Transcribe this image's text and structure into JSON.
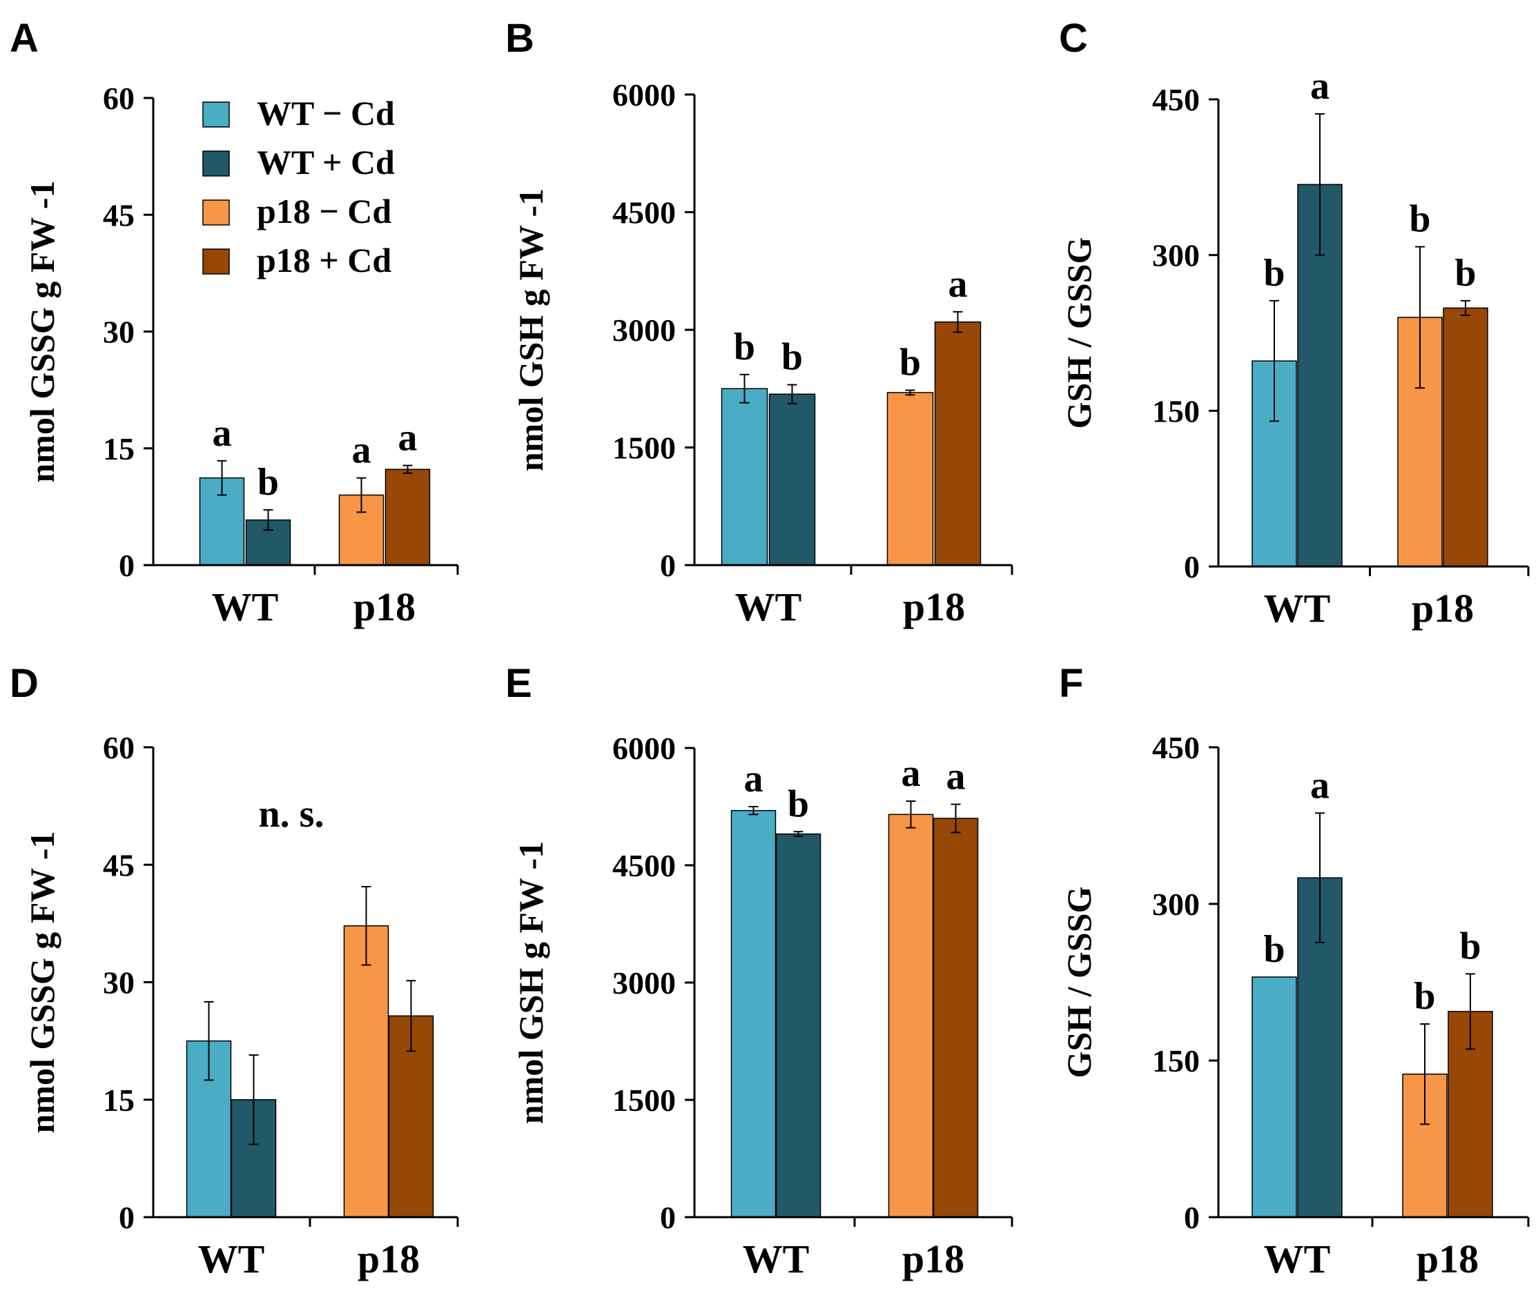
{
  "colors": {
    "wt_minus": "#4bacc6",
    "wt_plus": "#215968",
    "p18_minus": "#f79646",
    "p18_plus": "#974806",
    "axis": "#000000"
  },
  "legend": {
    "items": [
      {
        "label": "WT − Cd",
        "color_key": "wt_minus"
      },
      {
        "label": "WT + Cd",
        "color_key": "wt_plus"
      },
      {
        "label": "p18 − Cd",
        "color_key": "p18_minus"
      },
      {
        "label": "p18 + Cd",
        "color_key": "p18_plus"
      }
    ]
  },
  "chart_data": [
    {
      "panel": "A",
      "type": "bar",
      "title": "",
      "ylabel": "nmol GSSG g FW -1",
      "xlabel": "",
      "ylim": [
        0,
        60
      ],
      "yticks": [
        "0",
        "15",
        "30",
        "45",
        "60"
      ],
      "categories": [
        "WT",
        "p18"
      ],
      "series": [
        {
          "name": "WT − Cd",
          "color_key": "wt_minus",
          "group": 0,
          "value": 11.2,
          "error": 2.2,
          "letter": "a"
        },
        {
          "name": "WT + Cd",
          "color_key": "wt_plus",
          "group": 0,
          "value": 5.8,
          "error": 1.3,
          "letter": "b"
        },
        {
          "name": "p18 − Cd",
          "color_key": "p18_minus",
          "group": 1,
          "value": 9.0,
          "error": 2.2,
          "letter": "a"
        },
        {
          "name": "p18 + Cd",
          "color_key": "p18_plus",
          "group": 1,
          "value": 12.3,
          "error": 0.5,
          "letter": "a"
        }
      ],
      "annotation": ""
    },
    {
      "panel": "B",
      "type": "bar",
      "title": "",
      "ylabel": "nmol GSH g FW -1",
      "xlabel": "",
      "ylim": [
        0,
        6000
      ],
      "yticks": [
        "0",
        "1500",
        "3000",
        "4500",
        "6000"
      ],
      "categories": [
        "WT",
        "p18"
      ],
      "series": [
        {
          "name": "WT − Cd",
          "color_key": "wt_minus",
          "group": 0,
          "value": 2250,
          "error": 180,
          "letter": "b"
        },
        {
          "name": "WT + Cd",
          "color_key": "wt_plus",
          "group": 0,
          "value": 2180,
          "error": 120,
          "letter": "b"
        },
        {
          "name": "p18 − Cd",
          "color_key": "p18_minus",
          "group": 1,
          "value": 2200,
          "error": 30,
          "letter": "b"
        },
        {
          "name": "p18 + Cd",
          "color_key": "p18_plus",
          "group": 1,
          "value": 3100,
          "error": 130,
          "letter": "a"
        }
      ],
      "annotation": ""
    },
    {
      "panel": "C",
      "type": "bar",
      "title": "",
      "ylabel": "GSH / GSSG",
      "xlabel": "",
      "ylim": [
        0,
        450
      ],
      "yticks": [
        "0",
        "150",
        "300",
        "450"
      ],
      "categories": [
        "WT",
        "p18"
      ],
      "series": [
        {
          "name": "WT − Cd",
          "color_key": "wt_minus",
          "group": 0,
          "value": 198,
          "error": 58,
          "letter": "b"
        },
        {
          "name": "WT + Cd",
          "color_key": "wt_plus",
          "group": 0,
          "value": 368,
          "error": 68,
          "letter": "a"
        },
        {
          "name": "p18 − Cd",
          "color_key": "p18_minus",
          "group": 1,
          "value": 240,
          "error": 68,
          "letter": "b"
        },
        {
          "name": "p18 + Cd",
          "color_key": "p18_plus",
          "group": 1,
          "value": 249,
          "error": 7,
          "letter": "b"
        }
      ],
      "annotation": ""
    },
    {
      "panel": "D",
      "type": "bar",
      "title": "",
      "ylabel": "nmol GSSG g FW -1",
      "xlabel": "",
      "ylim": [
        0,
        60
      ],
      "yticks": [
        "0",
        "15",
        "30",
        "45",
        "60"
      ],
      "categories": [
        "WT",
        "p18"
      ],
      "series": [
        {
          "name": "WT − Cd",
          "color_key": "wt_minus",
          "group": 0,
          "value": 22.5,
          "error": 5.0,
          "letter": ""
        },
        {
          "name": "WT + Cd",
          "color_key": "wt_plus",
          "group": 0,
          "value": 15.0,
          "error": 5.7,
          "letter": ""
        },
        {
          "name": "p18 − Cd",
          "color_key": "p18_minus",
          "group": 1,
          "value": 37.2,
          "error": 5.0,
          "letter": ""
        },
        {
          "name": "p18 + Cd",
          "color_key": "p18_plus",
          "group": 1,
          "value": 25.7,
          "error": 4.5,
          "letter": ""
        }
      ],
      "annotation": "n. s."
    },
    {
      "panel": "E",
      "type": "bar",
      "title": "",
      "ylabel": "nmol GSH g FW -1",
      "xlabel": "",
      "ylim": [
        0,
        6000
      ],
      "yticks": [
        "0",
        "1500",
        "3000",
        "4500",
        "6000"
      ],
      "categories": [
        "WT",
        "p18"
      ],
      "series": [
        {
          "name": "WT − Cd",
          "color_key": "wt_minus",
          "group": 0,
          "value": 5200,
          "error": 50,
          "letter": "a"
        },
        {
          "name": "WT + Cd",
          "color_key": "wt_plus",
          "group": 0,
          "value": 4900,
          "error": 30,
          "letter": "b"
        },
        {
          "name": "p18 − Cd",
          "color_key": "p18_minus",
          "group": 1,
          "value": 5150,
          "error": 170,
          "letter": "a"
        },
        {
          "name": "p18 + Cd",
          "color_key": "p18_plus",
          "group": 1,
          "value": 5100,
          "error": 180,
          "letter": "a"
        }
      ],
      "annotation": ""
    },
    {
      "panel": "F",
      "type": "bar",
      "title": "",
      "ylabel": "GSH / GSSG",
      "xlabel": "",
      "ylim": [
        0,
        450
      ],
      "yticks": [
        "0",
        "150",
        "300",
        "450"
      ],
      "categories": [
        "WT",
        "p18"
      ],
      "series": [
        {
          "name": "WT − Cd",
          "color_key": "wt_minus",
          "group": 0,
          "value": 230,
          "error": 0,
          "letter": "b"
        },
        {
          "name": "WT + Cd",
          "color_key": "wt_plus",
          "group": 0,
          "value": 325,
          "error": 62,
          "letter": "a"
        },
        {
          "name": "p18 − Cd",
          "color_key": "p18_minus",
          "group": 1,
          "value": 137,
          "error": 48,
          "letter": "b"
        },
        {
          "name": "p18 + Cd",
          "color_key": "p18_plus",
          "group": 1,
          "value": 197,
          "error": 36,
          "letter": "b"
        }
      ],
      "annotation": ""
    }
  ]
}
